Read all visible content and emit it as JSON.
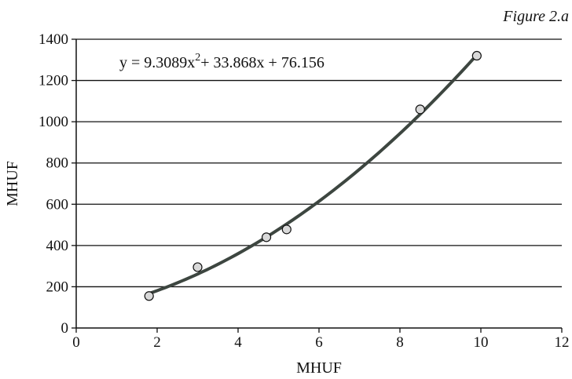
{
  "figure_label": "Figure 2.a",
  "chart_data": {
    "type": "scatter",
    "xlabel": "MHUF",
    "ylabel": "MHUF",
    "xlim": [
      0,
      12
    ],
    "ylim": [
      0,
      1400
    ],
    "x_ticks": [
      0,
      2,
      4,
      6,
      8,
      10,
      12
    ],
    "y_ticks": [
      0,
      200,
      400,
      600,
      800,
      1000,
      1200,
      1400
    ],
    "x_tick_labels": [
      "0",
      "2",
      "4",
      "6",
      "8",
      "10",
      "12"
    ],
    "y_tick_labels": [
      "0",
      "200",
      "400",
      "600",
      "800",
      "1000",
      "1200",
      "1400"
    ],
    "grid": "horizontal",
    "points": [
      {
        "x": 1.8,
        "y": 155
      },
      {
        "x": 3.0,
        "y": 295
      },
      {
        "x": 4.7,
        "y": 440
      },
      {
        "x": 5.2,
        "y": 478
      },
      {
        "x": 8.5,
        "y": 1060
      },
      {
        "x": 9.9,
        "y": 1320
      }
    ],
    "trendline": {
      "type": "polynomial",
      "coefficients": [
        9.3089,
        33.868,
        76.156
      ],
      "x_range": [
        1.8,
        9.9
      ],
      "equation_parts": {
        "lead": "y = 9.3089x",
        "exponent": "2",
        "tail": "+ 33.868x + 76.156"
      }
    },
    "colors": {
      "trendline": "#3d4640",
      "marker_fill": "#d9d9d9",
      "marker_stroke": "#111111",
      "grid": "#111111"
    }
  }
}
